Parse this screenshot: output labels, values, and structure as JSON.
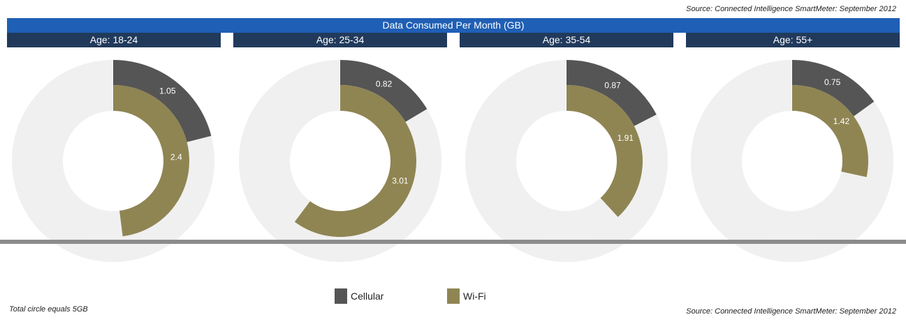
{
  "source_top": "Source: Connected Intelligence SmartMeter: September 2012",
  "source_bottom": "Source: Connected Intelligence SmartMeter: September 2012",
  "footnote": "Total circle equals 5GB",
  "colors": {
    "title_bar": "#1f5fb5",
    "age_header": "#213a5c",
    "cellular": "#555555",
    "wifi": "#8f8553",
    "ring_background": "#f0f0f0",
    "divider": "#8c8c8c"
  },
  "chart_data": {
    "type": "donut",
    "title": "Data Consumed Per Month (GB)",
    "total_circle": 5,
    "series": [
      {
        "name": "Cellular",
        "values": [
          1.05,
          0.82,
          0.87,
          0.75
        ]
      },
      {
        "name": "Wi-Fi",
        "values": [
          2.4,
          3.01,
          1.91,
          1.42
        ]
      }
    ],
    "categories": [
      "Age: 18-24",
      "Age: 25-34",
      "Age: 35-54",
      "Age: 55+"
    ],
    "legend": {
      "placement": "bottom-center",
      "items": [
        {
          "label": "Cellular",
          "color": "#555555"
        },
        {
          "label": "Wi-Fi",
          "color": "#8f8553"
        }
      ]
    }
  }
}
